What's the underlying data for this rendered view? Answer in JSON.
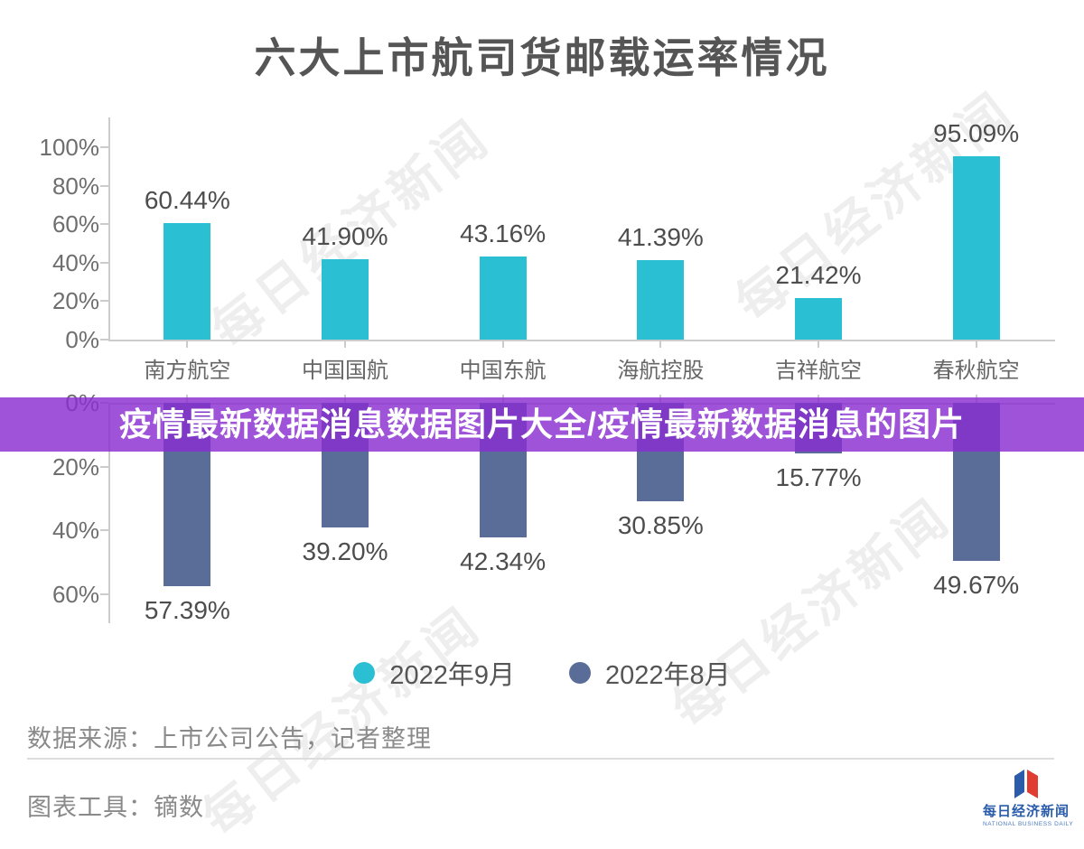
{
  "title": "六大上市航司货邮载运率情况",
  "banner": {
    "text": "疫情最新数据消息数据图片大全/疫情最新数据消息的图片"
  },
  "watermark": {
    "text": "每日经济新闻"
  },
  "chart_data": {
    "type": "bar",
    "layout": "mirrored-dual-axis",
    "title": "六大上市航司货邮载运率情况",
    "unit": "%",
    "grid": false,
    "categories": [
      "南方航空",
      "中国国航",
      "中国东航",
      "海航控股",
      "吉祥航空",
      "春秋航空"
    ],
    "series": [
      {
        "name": "2022年9月",
        "direction": "up",
        "color": "#2BBFD4",
        "values": [
          60.44,
          41.9,
          43.16,
          41.39,
          21.42,
          95.09
        ],
        "labels": [
          "60.44%",
          "41.90%",
          "43.16%",
          "41.39%",
          "21.42%",
          "95.09%"
        ],
        "axis_tick_values": [
          0,
          20,
          40,
          60,
          80,
          100
        ],
        "axis_tick_labels": [
          "0%",
          "20%",
          "40%",
          "60%",
          "80%",
          "100%"
        ],
        "ylim": [
          0,
          100
        ]
      },
      {
        "name": "2022年8月",
        "direction": "down",
        "color": "#5A6C98",
        "values": [
          57.39,
          39.2,
          42.34,
          30.85,
          15.77,
          49.67
        ],
        "labels": [
          "57.39%",
          "39.20%",
          "42.34%",
          "30.85%",
          "15.77%",
          "49.67%"
        ],
        "axis_tick_values": [
          0,
          20,
          40,
          60
        ],
        "axis_tick_labels": [
          "0%",
          "20%",
          "40%",
          "60%"
        ],
        "ylim": [
          0,
          60
        ]
      }
    ],
    "legend_position": "bottom-center"
  },
  "legend": {
    "items": [
      {
        "label": "2022年9月",
        "color": "#2BBFD4"
      },
      {
        "label": "2022年8月",
        "color": "#5A6C98"
      }
    ]
  },
  "footer": {
    "source": "数据来源：上市公司公告，记者整理",
    "tool": "图表工具：镝数"
  },
  "logo": {
    "name": "每日经济新闻",
    "subtitle": "NATIONAL BUSINESS DAILY"
  }
}
